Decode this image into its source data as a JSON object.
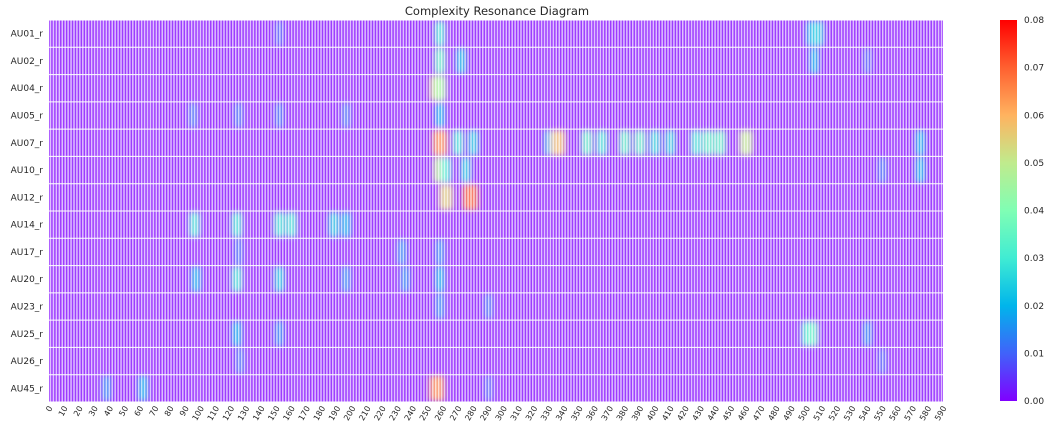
{
  "chart_data": {
    "type": "heatmap",
    "title": "Complexity Resonance Diagram",
    "xlabel": "",
    "ylabel": "",
    "colormap": "rainbow",
    "background_color": "#7f00ff",
    "grid_line_color": "#ffffff",
    "rows": [
      "AU01_r",
      "AU02_r",
      "AU04_r",
      "AU05_r",
      "AU07_r",
      "AU10_r",
      "AU12_r",
      "AU14_r",
      "AU17_r",
      "AU20_r",
      "AU23_r",
      "AU25_r",
      "AU26_r",
      "AU45_r"
    ],
    "x_range": [
      0,
      590
    ],
    "x_tick_labels": [
      "0",
      "10",
      "20",
      "30",
      "40",
      "50",
      "60",
      "70",
      "80",
      "90",
      "100",
      "110",
      "120",
      "130",
      "140",
      "150",
      "160",
      "170",
      "180",
      "190",
      "200",
      "210",
      "220",
      "230",
      "240",
      "250",
      "260",
      "270",
      "280",
      "290",
      "300",
      "310",
      "320",
      "330",
      "340",
      "350",
      "360",
      "370",
      "380",
      "390",
      "400",
      "410",
      "420",
      "430",
      "440",
      "450",
      "460",
      "470",
      "480",
      "490",
      "500",
      "510",
      "520",
      "530",
      "540",
      "550",
      "560",
      "570",
      "580",
      "590"
    ],
    "colorbar": {
      "min": 0.0,
      "max": 0.08,
      "ticks": [
        "0.00",
        "0.01",
        "0.02",
        "0.03",
        "0.04",
        "0.05",
        "0.06",
        "0.07",
        "0.08"
      ]
    },
    "hotspots": [
      {
        "row": "AU01_r",
        "x": 258,
        "value": 0.03
      },
      {
        "row": "AU01_r",
        "x": 503,
        "value": 0.022
      },
      {
        "row": "AU01_r",
        "x": 508,
        "value": 0.025
      },
      {
        "row": "AU01_r",
        "x": 152,
        "value": 0.01
      },
      {
        "row": "AU02_r",
        "x": 258,
        "value": 0.035
      },
      {
        "row": "AU02_r",
        "x": 272,
        "value": 0.022
      },
      {
        "row": "AU02_r",
        "x": 505,
        "value": 0.02
      },
      {
        "row": "AU02_r",
        "x": 540,
        "value": 0.01
      },
      {
        "row": "AU04_r",
        "x": 256,
        "value": 0.055
      },
      {
        "row": "AU04_r",
        "x": 258,
        "value": 0.045
      },
      {
        "row": "AU05_r",
        "x": 95,
        "value": 0.012
      },
      {
        "row": "AU05_r",
        "x": 125,
        "value": 0.012
      },
      {
        "row": "AU05_r",
        "x": 152,
        "value": 0.012
      },
      {
        "row": "AU05_r",
        "x": 196,
        "value": 0.012
      },
      {
        "row": "AU05_r",
        "x": 258,
        "value": 0.02
      },
      {
        "row": "AU07_r",
        "x": 258,
        "value": 0.065
      },
      {
        "row": "AU07_r",
        "x": 270,
        "value": 0.03
      },
      {
        "row": "AU07_r",
        "x": 280,
        "value": 0.025
      },
      {
        "row": "AU07_r",
        "x": 330,
        "value": 0.02
      },
      {
        "row": "AU07_r",
        "x": 336,
        "value": 0.058
      },
      {
        "row": "AU07_r",
        "x": 355,
        "value": 0.035
      },
      {
        "row": "AU07_r",
        "x": 365,
        "value": 0.03
      },
      {
        "row": "AU07_r",
        "x": 380,
        "value": 0.035
      },
      {
        "row": "AU07_r",
        "x": 390,
        "value": 0.035
      },
      {
        "row": "AU07_r",
        "x": 400,
        "value": 0.028
      },
      {
        "row": "AU07_r",
        "x": 410,
        "value": 0.026
      },
      {
        "row": "AU07_r",
        "x": 427,
        "value": 0.03
      },
      {
        "row": "AU07_r",
        "x": 435,
        "value": 0.035
      },
      {
        "row": "AU07_r",
        "x": 443,
        "value": 0.035
      },
      {
        "row": "AU07_r",
        "x": 460,
        "value": 0.05
      },
      {
        "row": "AU07_r",
        "x": 575,
        "value": 0.02
      },
      {
        "row": "AU10_r",
        "x": 258,
        "value": 0.05
      },
      {
        "row": "AU10_r",
        "x": 262,
        "value": 0.03
      },
      {
        "row": "AU10_r",
        "x": 275,
        "value": 0.025
      },
      {
        "row": "AU10_r",
        "x": 550,
        "value": 0.012
      },
      {
        "row": "AU10_r",
        "x": 575,
        "value": 0.02
      },
      {
        "row": "AU12_r",
        "x": 262,
        "value": 0.055
      },
      {
        "row": "AU12_r",
        "x": 278,
        "value": 0.07
      },
      {
        "row": "AU14_r",
        "x": 96,
        "value": 0.03
      },
      {
        "row": "AU14_r",
        "x": 124,
        "value": 0.03
      },
      {
        "row": "AU14_r",
        "x": 152,
        "value": 0.03
      },
      {
        "row": "AU14_r",
        "x": 160,
        "value": 0.03
      },
      {
        "row": "AU14_r",
        "x": 188,
        "value": 0.025
      },
      {
        "row": "AU14_r",
        "x": 196,
        "value": 0.02
      },
      {
        "row": "AU17_r",
        "x": 125,
        "value": 0.012
      },
      {
        "row": "AU17_r",
        "x": 233,
        "value": 0.015
      },
      {
        "row": "AU17_r",
        "x": 258,
        "value": 0.015
      },
      {
        "row": "AU20_r",
        "x": 97,
        "value": 0.02
      },
      {
        "row": "AU20_r",
        "x": 124,
        "value": 0.03
      },
      {
        "row": "AU20_r",
        "x": 152,
        "value": 0.025
      },
      {
        "row": "AU20_r",
        "x": 196,
        "value": 0.015
      },
      {
        "row": "AU20_r",
        "x": 235,
        "value": 0.015
      },
      {
        "row": "AU20_r",
        "x": 258,
        "value": 0.02
      },
      {
        "row": "AU23_r",
        "x": 258,
        "value": 0.015
      },
      {
        "row": "AU23_r",
        "x": 290,
        "value": 0.012
      },
      {
        "row": "AU25_r",
        "x": 124,
        "value": 0.02
      },
      {
        "row": "AU25_r",
        "x": 152,
        "value": 0.015
      },
      {
        "row": "AU25_r",
        "x": 500,
        "value": 0.03
      },
      {
        "row": "AU25_r",
        "x": 504,
        "value": 0.035
      },
      {
        "row": "AU25_r",
        "x": 540,
        "value": 0.015
      },
      {
        "row": "AU26_r",
        "x": 126,
        "value": 0.012
      },
      {
        "row": "AU26_r",
        "x": 550,
        "value": 0.01
      },
      {
        "row": "AU45_r",
        "x": 38,
        "value": 0.015
      },
      {
        "row": "AU45_r",
        "x": 62,
        "value": 0.02
      },
      {
        "row": "AU45_r",
        "x": 256,
        "value": 0.065
      },
      {
        "row": "AU45_r",
        "x": 290,
        "value": 0.01
      }
    ]
  }
}
